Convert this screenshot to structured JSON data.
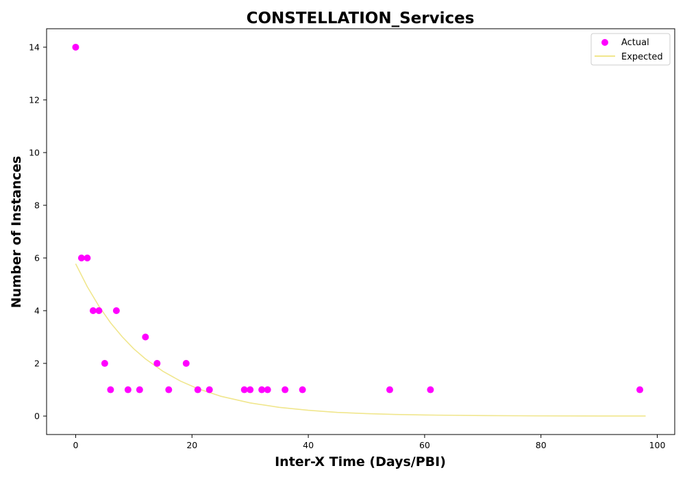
{
  "chart_data": {
    "type": "scatter",
    "title": "CONSTELLATION_Services",
    "xlabel": "Inter-X Time (Days/PBI)",
    "ylabel": "Number of Instances",
    "xlim": [
      -5,
      103
    ],
    "ylim": [
      -0.7,
      14.7
    ],
    "xticks": [
      0,
      20,
      40,
      60,
      80,
      100
    ],
    "yticks": [
      0,
      2,
      4,
      6,
      8,
      10,
      12,
      14
    ],
    "grid": false,
    "legend_position": "top-right",
    "series": [
      {
        "name": "Actual",
        "kind": "scatter",
        "color": "#ff00ff",
        "x": [
          0,
          1,
          2,
          3,
          4,
          5,
          6,
          7,
          9,
          11,
          12,
          14,
          16,
          19,
          21,
          23,
          29,
          30,
          32,
          33,
          36,
          39,
          54,
          61,
          97
        ],
        "y": [
          14,
          6,
          6,
          4,
          4,
          2,
          1,
          4,
          1,
          1,
          3,
          2,
          1,
          2,
          1,
          1,
          1,
          1,
          1,
          1,
          1,
          1,
          1,
          1,
          1
        ]
      },
      {
        "name": "Expected",
        "kind": "line",
        "color": "#f0e68c",
        "x": [
          0,
          2,
          4,
          6,
          8,
          10,
          12,
          15,
          18,
          21,
          25,
          30,
          35,
          40,
          45,
          50,
          55,
          60,
          70,
          80,
          90,
          98
        ],
        "y": [
          5.78,
          4.91,
          4.17,
          3.54,
          3.01,
          2.55,
          2.17,
          1.7,
          1.33,
          1.04,
          0.75,
          0.5,
          0.33,
          0.22,
          0.14,
          0.094,
          0.062,
          0.041,
          0.018,
          0.008,
          0.0035,
          0.0018
        ]
      }
    ]
  }
}
